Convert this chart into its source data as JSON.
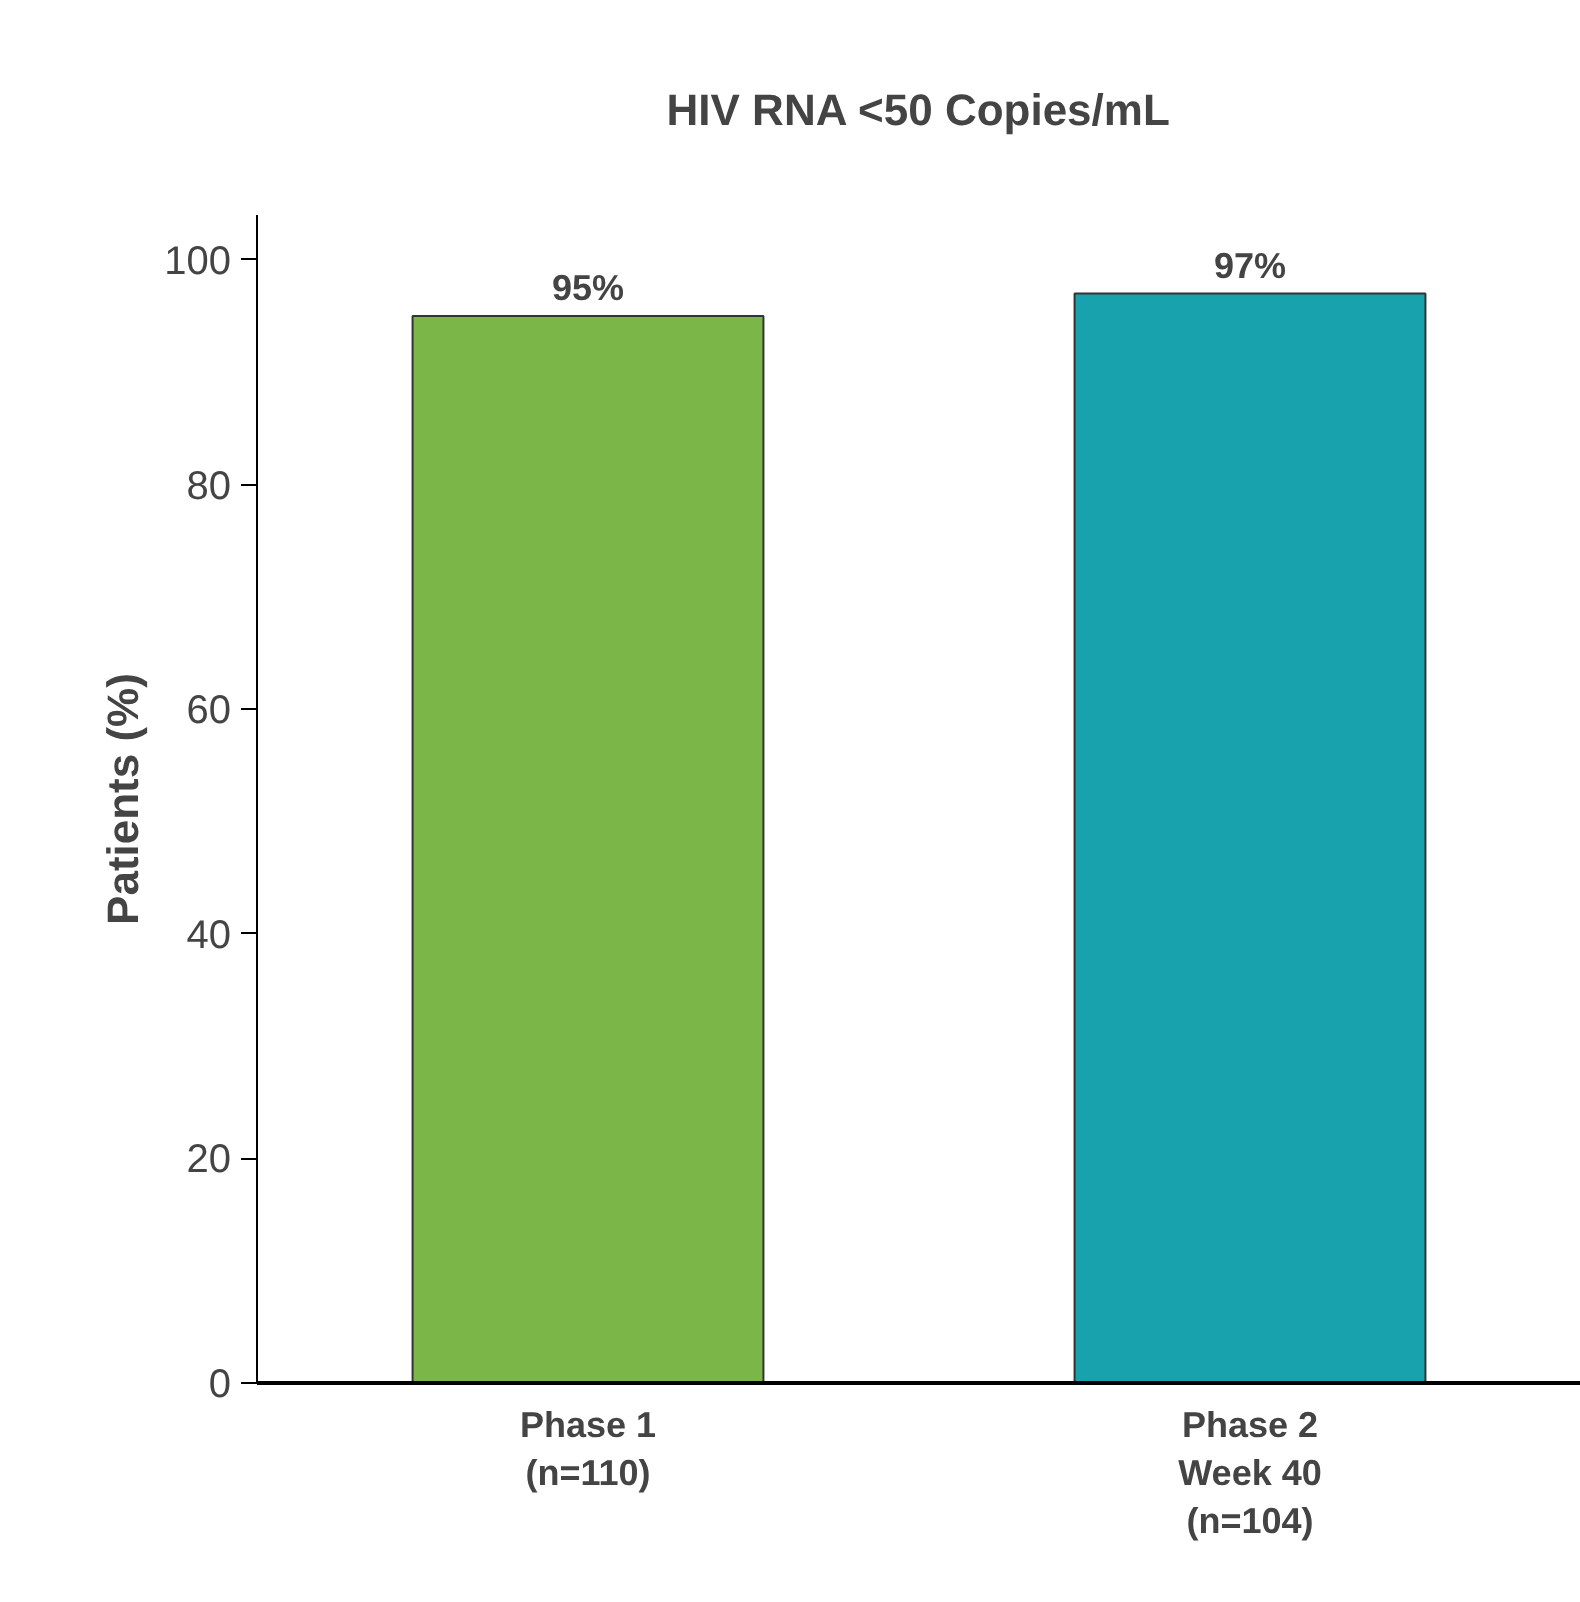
{
  "chart_data": {
    "type": "bar",
    "title": "HIV RNA <50 Copies/mL",
    "ylabel": "Patients (%)",
    "categories": [
      "Phase 1\n(n=110)",
      "Phase 2\nWeek 40\n(n=104)"
    ],
    "values": [
      95,
      97
    ],
    "colors": [
      "#7ab648",
      "#17a2ad"
    ],
    "value_labels": [
      "95%",
      "97%"
    ],
    "ylim": [
      0,
      104
    ],
    "yticks": [
      0,
      20,
      40,
      60,
      80,
      100
    ],
    "grid": false
  }
}
